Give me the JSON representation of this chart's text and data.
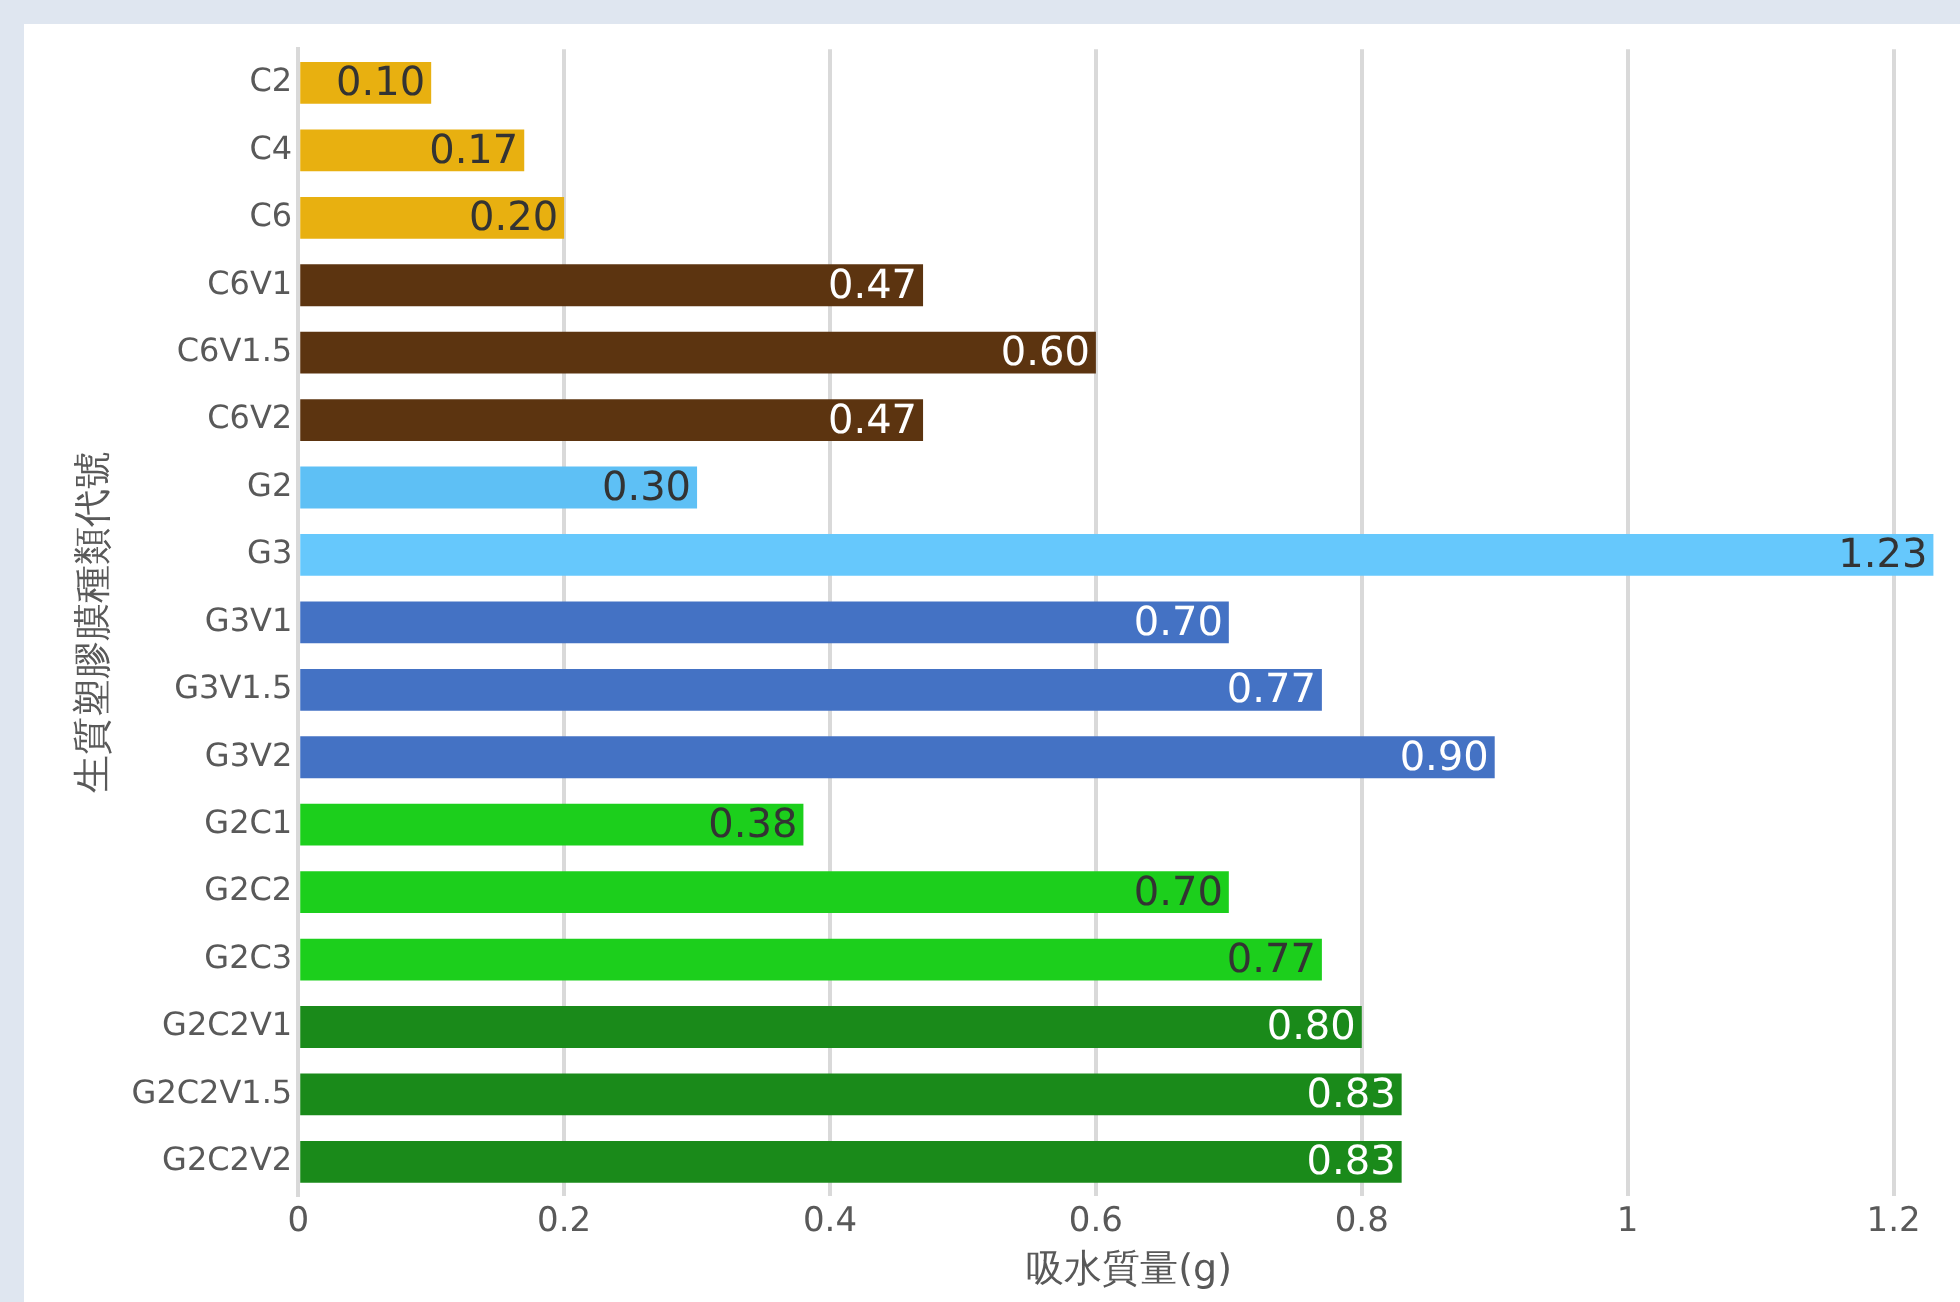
{
  "chart_data": {
    "type": "bar",
    "orientation": "horizontal",
    "xlabel": "吸水質量(g)",
    "ylabel": "生質塑膠膜種類代號",
    "categories": [
      "C2",
      "C4",
      "C6",
      "C6V1",
      "C6V1.5",
      "C6V2",
      "G2",
      "G3",
      "G3V1",
      "G3V1.5",
      "G3V2",
      "G2C1",
      "G2C2",
      "G2C3",
      "G2C2V1",
      "G2C2V1.5",
      "G2C2V2"
    ],
    "values": [
      0.1,
      0.17,
      0.2,
      0.47,
      0.6,
      0.47,
      0.3,
      1.23,
      0.7,
      0.77,
      0.9,
      0.38,
      0.7,
      0.77,
      0.8,
      0.83,
      0.83
    ],
    "value_labels": [
      "0.10",
      "0.17",
      "0.20",
      "0.47",
      "0.60",
      "0.47",
      "0.30",
      "1.23",
      "0.70",
      "0.77",
      "0.90",
      "0.38",
      "0.70",
      "0.77",
      "0.80",
      "0.83",
      "0.83"
    ],
    "colors": [
      "#e8b010",
      "#e8b010",
      "#e8b010",
      "#5c3410",
      "#5c3410",
      "#5c3410",
      "#5ec0f5",
      "#66c8fc",
      "#4472c4",
      "#4472c4",
      "#4472c4",
      "#1ccf1c",
      "#1ccf1c",
      "#1ccf1c",
      "#1a8a1a",
      "#1a8a1a",
      "#1a8a1a"
    ],
    "xlim": [
      0,
      1.25
    ],
    "xticks": [
      0,
      0.2,
      0.4,
      0.6,
      0.8,
      1,
      1.2
    ],
    "grid": "x",
    "legend": false
  }
}
